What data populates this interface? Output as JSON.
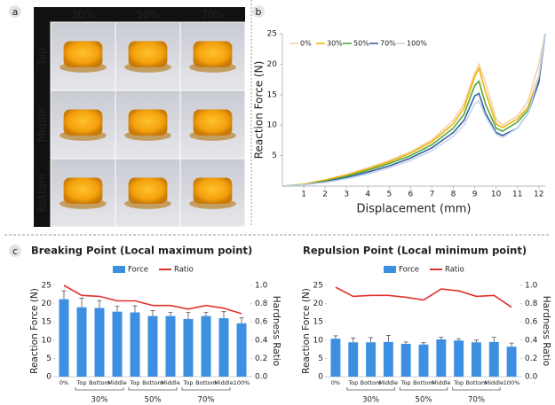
{
  "panel_labels": [
    "a",
    "b",
    "c"
  ],
  "photo_grid": {
    "columns": [
      "30%",
      "50%",
      "70%"
    ],
    "rows": [
      "Top",
      "Middle",
      "Bottom"
    ]
  },
  "chart_data": [
    {
      "type": "line",
      "xlabel": "Displacement (mm)",
      "ylabel": "Reaction Force (N)",
      "x": [
        0,
        1,
        2,
        3,
        4,
        5,
        6,
        7,
        8,
        8.5,
        9,
        9.2,
        9.5,
        10,
        10.3,
        11,
        11.5,
        12,
        12.3
      ],
      "series": [
        {
          "name": "0%",
          "color": "#f6cfa8",
          "values": [
            0,
            0.3,
            1.0,
            1.9,
            3.0,
            4.2,
            5.6,
            7.6,
            10.8,
            13.5,
            18.5,
            20,
            17,
            11,
            10,
            11.5,
            14,
            20,
            25
          ]
        },
        {
          "name": "30%",
          "color": "#f0b400",
          "values": [
            0,
            0.3,
            1.0,
            1.8,
            2.8,
            4.0,
            5.4,
            7.3,
            10.2,
            12.8,
            18,
            19.3,
            15.5,
            10.2,
            9.6,
            11,
            13,
            18,
            25
          ]
        },
        {
          "name": "50%",
          "color": "#4daa3c",
          "values": [
            0,
            0.2,
            0.8,
            1.6,
            2.6,
            3.7,
            5.0,
            6.8,
            9.5,
            11.8,
            16.5,
            17.2,
            13.5,
            9.5,
            9.0,
            10.5,
            12.5,
            17.5,
            25
          ]
        },
        {
          "name": "70%",
          "color": "#3a5f9e",
          "values": [
            0,
            0.2,
            0.7,
            1.4,
            2.3,
            3.3,
            4.6,
            6.3,
            8.8,
            10.8,
            14.8,
            15.2,
            12,
            8.8,
            8.3,
            9.5,
            12,
            17,
            25
          ]
        },
        {
          "name": "100%",
          "color": "#c5d5ee",
          "values": [
            0,
            0.2,
            0.6,
            1.2,
            2.0,
            3.0,
            4.2,
            5.8,
            8.2,
            10,
            13.5,
            14,
            11.5,
            8.5,
            8,
            9.5,
            12,
            18,
            25
          ]
        }
      ],
      "xlim": [
        0,
        12.3
      ],
      "ylim": [
        0,
        25
      ],
      "xticks": [
        1,
        2,
        3,
        4,
        5,
        6,
        7,
        8,
        9,
        10,
        11,
        12
      ],
      "yticks": [
        5,
        10,
        15,
        20,
        25
      ],
      "legend": "upper left"
    },
    {
      "type": "bar",
      "title": "Breaking Point (Local maximum point)",
      "ylabel": "Reaction Force (N)",
      "y2label": "Hardness Ratio",
      "categories": [
        "0%",
        "Top",
        "Bottom",
        "Middle",
        "Top",
        "Bottom",
        "Middle",
        "Top",
        "Bottom",
        "Middle",
        "100%"
      ],
      "groups": [
        "30%",
        "50%",
        "70%"
      ],
      "series": [
        {
          "name": "Force",
          "color": "#3d8fe2",
          "values": [
            21.2,
            19,
            18.8,
            17.8,
            17.6,
            16.6,
            16.6,
            15.8,
            16.6,
            16,
            14.6
          ],
          "errors": [
            2.3,
            2.5,
            2,
            1.5,
            1.8,
            1.5,
            1,
            1.8,
            1,
            1.8,
            1.5
          ]
        },
        {
          "name": "Ratio",
          "color": "#e0322d",
          "axis": "y2",
          "values": [
            1.0,
            0.89,
            0.88,
            0.83,
            0.83,
            0.78,
            0.78,
            0.74,
            0.78,
            0.75,
            0.69
          ]
        }
      ],
      "ylim": [
        0,
        25
      ],
      "yticks": [
        0,
        5,
        10,
        15,
        20,
        25
      ],
      "y2lim": [
        0,
        1
      ],
      "y2ticks": [
        {
          "value": 0,
          "label": "0.0"
        },
        0.2,
        0.4,
        0.6,
        0.8,
        {
          "value": 1,
          "label": "1.0"
        }
      ],
      "legend": "upper center"
    },
    {
      "type": "bar",
      "title": "Repulsion Point (Local minimum point)",
      "ylabel": "Reaction Force (N)",
      "y2label": "Hardness Ratio",
      "categories": [
        "0%",
        "Top",
        "Bottom",
        "Middle",
        "Top",
        "Bottom",
        "Middle",
        "Top",
        "Bottom",
        "Middle",
        "100%"
      ],
      "groups": [
        "30%",
        "50%",
        "70%"
      ],
      "series": [
        {
          "name": "Force",
          "color": "#3d8fe2",
          "values": [
            10.4,
            9.4,
            9.4,
            9.5,
            9,
            8.8,
            10.2,
            9.9,
            9.4,
            9.5,
            8.2
          ],
          "errors": [
            0.8,
            1.2,
            1.3,
            1.8,
            0.5,
            0.5,
            0.6,
            0.5,
            0.6,
            1.3,
            1.0
          ]
        },
        {
          "name": "Ratio",
          "color": "#e0322d",
          "axis": "y2",
          "values": [
            0.98,
            0.88,
            0.89,
            0.89,
            0.87,
            0.84,
            0.96,
            0.94,
            0.88,
            0.89,
            0.76
          ]
        }
      ],
      "ylim": [
        0,
        25
      ],
      "yticks": [
        0,
        5,
        10,
        15,
        20,
        25
      ],
      "y2lim": [
        0,
        1
      ],
      "y2ticks": [
        {
          "value": 0,
          "label": "0.0"
        },
        0.2,
        0.4,
        0.6,
        0.8,
        {
          "value": 1,
          "label": "1.0"
        }
      ],
      "legend": "upper center"
    }
  ]
}
